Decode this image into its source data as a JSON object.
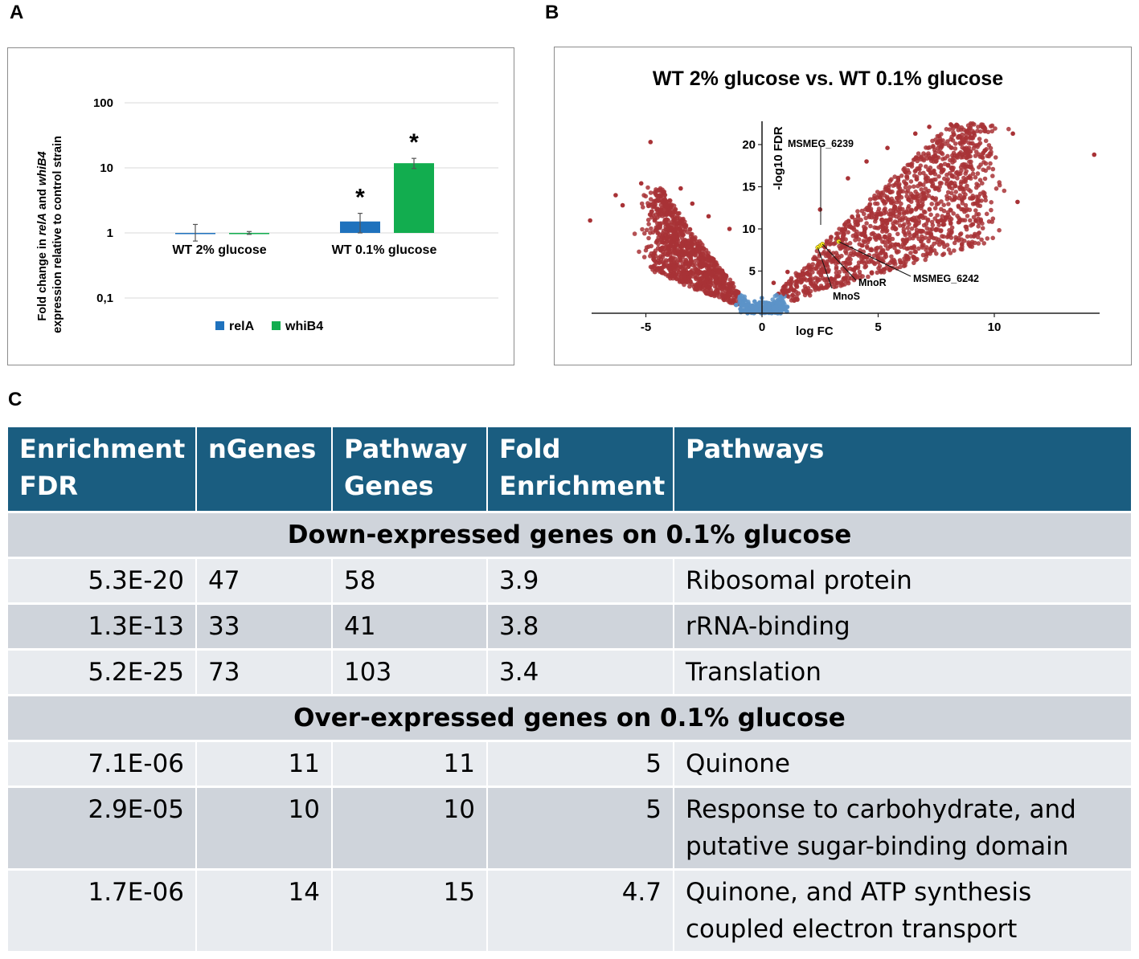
{
  "panels": {
    "a": "A",
    "b": "B",
    "c": "C"
  },
  "chart_data": [
    {
      "type": "bar",
      "scale": "log",
      "ylabel_parts": [
        "Fold change in ",
        "relA",
        " and ",
        "whiB4",
        "expression relative to control strain"
      ],
      "yticks": [
        {
          "value": 100,
          "label": "100"
        },
        {
          "value": 10,
          "label": "10"
        },
        {
          "value": 1,
          "label": "1"
        },
        {
          "value": 0.1,
          "label": "0,1"
        }
      ],
      "ylim": [
        0.1,
        100
      ],
      "categories": [
        "WT 2%  glucose",
        "WT 0.1%  glucose"
      ],
      "series": [
        {
          "name": "relA",
          "color": "#1f72bd",
          "values": [
            1.0,
            1.5
          ],
          "err_low": [
            0.75,
            1.0
          ],
          "err_high": [
            1.35,
            2.0
          ]
        },
        {
          "name": "whiB4",
          "color": "#12ad4f",
          "values": [
            1.0,
            11.8
          ],
          "err_low": [
            0.95,
            9.8
          ],
          "err_high": [
            1.05,
            14.0
          ]
        }
      ],
      "significance": [
        {
          "category": 1,
          "series": 0,
          "label": "*"
        },
        {
          "category": 1,
          "series": 1,
          "label": "*"
        }
      ]
    },
    {
      "type": "scatter",
      "title": "WT 2% glucose vs. WT 0.1% glucose",
      "xlabel": "log FC",
      "ylabel": "-log10 FDR",
      "xlim": [
        -7.5,
        14.5
      ],
      "ylim": [
        0,
        23
      ],
      "xticks": [
        {
          "value": -5,
          "label": "-5"
        },
        {
          "value": 0,
          "label": "0"
        },
        {
          "value": 5,
          "label": "5"
        },
        {
          "value": 10,
          "label": "10"
        }
      ],
      "yticks": [
        {
          "value": 5,
          "label": "5"
        },
        {
          "value": 10,
          "label": "10"
        },
        {
          "value": 15,
          "label": "15"
        },
        {
          "value": 20,
          "label": "20"
        }
      ],
      "point_colors": {
        "significant": "#a83236",
        "not_significant": "#5c93c8",
        "highlight": "#f2e320"
      },
      "highlighted": [
        {
          "label": "MSMEG_6239",
          "x": 2.5,
          "y": 8.0
        },
        {
          "label": "MnoR",
          "x": 2.6,
          "y": 8.2
        },
        {
          "label": "MnoS",
          "x": 2.4,
          "y": 7.8
        },
        {
          "label": "MSMEG_6242",
          "x": 3.3,
          "y": 8.5
        }
      ],
      "sample_points": [
        {
          "x": -7.4,
          "y": 11.0
        },
        {
          "x": -6.3,
          "y": 14.0
        },
        {
          "x": -4.8,
          "y": 20.3
        },
        {
          "x": -6.0,
          "y": 12.8
        },
        {
          "x": -5.2,
          "y": 15.4
        },
        {
          "x": -4.6,
          "y": 13.3
        },
        {
          "x": -3.5,
          "y": 14.8
        },
        {
          "x": -3.0,
          "y": 13.0
        },
        {
          "x": -2.3,
          "y": 11.5
        },
        {
          "x": -1.4,
          "y": 10.0
        },
        {
          "x": 0.5,
          "y": 3.6
        },
        {
          "x": 1.1,
          "y": 4.9
        },
        {
          "x": 2.5,
          "y": 12.3
        },
        {
          "x": 3.7,
          "y": 16.0
        },
        {
          "x": 4.5,
          "y": 18.0
        },
        {
          "x": 5.4,
          "y": 19.6
        },
        {
          "x": 6.6,
          "y": 21.3
        },
        {
          "x": 7.2,
          "y": 22.1
        },
        {
          "x": 8.5,
          "y": 21.0
        },
        {
          "x": 9.6,
          "y": 19.3
        },
        {
          "x": 10.8,
          "y": 21.3
        },
        {
          "x": 11.0,
          "y": 13.2
        },
        {
          "x": 14.3,
          "y": 18.8
        },
        {
          "x": 9.2,
          "y": 11.0
        },
        {
          "x": 6.3,
          "y": 13.5
        },
        {
          "x": 7.8,
          "y": 10.5
        },
        {
          "x": 3.6,
          "y": 6.0
        },
        {
          "x": 5.0,
          "y": 6.5
        },
        {
          "x": 1.0,
          "y": 0.4
        },
        {
          "x": -0.8,
          "y": 0.3
        }
      ]
    }
  ],
  "table": {
    "headers": [
      {
        "line1": "Enrichment",
        "line2": "FDR"
      },
      {
        "line1": "nGenes",
        "line2": ""
      },
      {
        "line1": "Pathway",
        "line2": "Genes"
      },
      {
        "line1": "Fold",
        "line2": "Enrichment"
      },
      {
        "line1": "Pathways",
        "line2": ""
      }
    ],
    "down_section": "Down-expressed genes on 0.1% glucose",
    "down_rows": [
      {
        "fdr": "5.3E-20",
        "ngenes": "47",
        "pathway_genes": "58",
        "fold": "3.9",
        "pathway": "Ribosomal protein"
      },
      {
        "fdr": "1.3E-13",
        "ngenes": "33",
        "pathway_genes": "41",
        "fold": "3.8",
        "pathway": "rRNA-binding"
      },
      {
        "fdr": "5.2E-25",
        "ngenes": "73",
        "pathway_genes": "103",
        "fold": "3.4",
        "pathway": "Translation"
      }
    ],
    "over_section": "Over-expressed genes on 0.1% glucose",
    "over_rows": [
      {
        "fdr": "7.1E-06",
        "ngenes": "11",
        "pathway_genes": "11",
        "fold": "5",
        "pathway": "Quinone",
        "pathway2": ""
      },
      {
        "fdr": "2.9E-05",
        "ngenes": "10",
        "pathway_genes": "10",
        "fold": "5",
        "pathway": "Response to carbohydrate, and",
        "pathway2": "putative sugar-binding domain"
      },
      {
        "fdr": "1.7E-06",
        "ngenes": "14",
        "pathway_genes": "15",
        "fold": "4.7",
        "pathway": "Quinone, and ATP synthesis",
        "pathway2": "coupled electron transport"
      }
    ]
  }
}
